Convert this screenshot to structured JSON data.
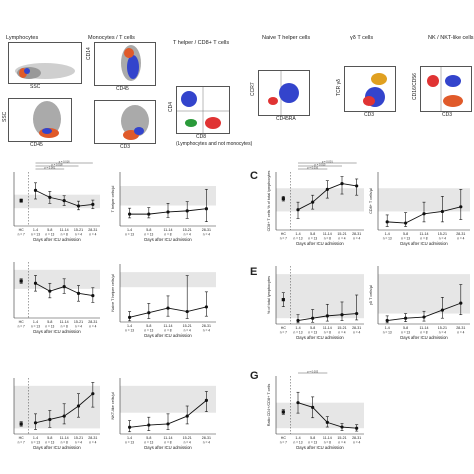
{
  "flow": {
    "headers": [
      {
        "id": "lymphocytes",
        "text": "Lymphocytes"
      },
      {
        "id": "monocytes",
        "text": "Monocytes / T cells"
      },
      {
        "id": "thelper",
        "text": "T helper / CD8+ T cells"
      },
      {
        "id": "naive",
        "text": "Naive T helper cells"
      },
      {
        "id": "gd",
        "text": "γδ T cells"
      },
      {
        "id": "nk",
        "text": "NK / NKT-like cells"
      }
    ],
    "axis_labels": {
      "ssc1": "SSC",
      "cd14": "CD14",
      "cd45": "CD45",
      "ssc2": "SSC",
      "cd45_b": "CD45",
      "cd3": "CD3",
      "cd4": "CD4",
      "cd8": "CD8",
      "gate_note": "(Lymphocytes and not monocytes)",
      "ccr7": "CCR7",
      "cd45ra": "CD45RA",
      "tcrgd": "TCR γδ",
      "cd3_b": "CD3",
      "cd16cd56": "CD16/CD56",
      "cd3_c": "CD3"
    }
  },
  "panels": {
    "C": "C",
    "E": "E",
    "G": "G"
  },
  "chart_data": [
    {
      "id": "A1",
      "type": "line",
      "ylabel": "",
      "xlabel": "Days after ICU admission",
      "categories": [
        "HC",
        "1-4",
        "5-8",
        "11-14",
        "15-21",
        "28-31"
      ],
      "n_labels": [
        "n = 7",
        "n = 13",
        "n = 13",
        "n = 8",
        "n = 4",
        "n = 4"
      ],
      "values": [
        0.47,
        0.66,
        0.53,
        0.47,
        0.37,
        0.4
      ],
      "err_low": [
        0.44,
        0.5,
        0.42,
        0.38,
        0.3,
        0.32
      ],
      "err_high": [
        0.5,
        0.8,
        0.64,
        0.56,
        0.46,
        0.48
      ],
      "band": [
        0.33,
        0.58
      ],
      "sig": [
        "p = 0.001",
        "p = 0.018",
        "p = 0.016"
      ]
    },
    {
      "id": "A2",
      "type": "line",
      "ylabel": "T helper cells/µl",
      "xlabel": "Days after ICU admission",
      "categories": [
        "1-4",
        "5-8",
        "11-14",
        "15-21",
        "28-31"
      ],
      "n_labels": [
        "n = 13",
        "n = 13",
        "n = 8",
        "n = 4",
        "n = 4"
      ],
      "values": [
        0.22,
        0.22,
        0.26,
        0.28,
        0.32
      ],
      "err_low": [
        0.15,
        0.15,
        0.16,
        0.14,
        0.08
      ],
      "err_high": [
        0.33,
        0.34,
        0.42,
        0.45,
        0.68
      ],
      "band": [
        0.38,
        0.74
      ],
      "sig": []
    },
    {
      "id": "C1",
      "type": "line",
      "ylabel": "CD8+ T cells % of total lymphocytes",
      "xlabel": "Days after ICU admission",
      "categories": [
        "HC",
        "1-4",
        "5-8",
        "11-14",
        "15-21",
        "28-31"
      ],
      "n_labels": [
        "n = 7",
        "n = 13",
        "n = 13",
        "n = 8",
        "n = 4",
        "n = 4"
      ],
      "values": [
        0.54,
        0.35,
        0.48,
        0.7,
        0.8,
        0.76
      ],
      "err_low": [
        0.5,
        0.2,
        0.36,
        0.55,
        0.62,
        0.6
      ],
      "err_high": [
        0.58,
        0.48,
        0.6,
        0.85,
        0.92,
        0.88
      ],
      "band": [
        0.32,
        0.72
      ],
      "sig": [
        "p = 0.016",
        "p = 0.015",
        "p = 0.001"
      ]
    },
    {
      "id": "C2",
      "type": "line",
      "ylabel": "CD8+ T cells/µl",
      "xlabel": "Days after ICU admission",
      "categories": [
        "1-4",
        "5-8",
        "11-14",
        "15-21",
        "28-31"
      ],
      "n_labels": [
        "n = 13",
        "n = 13",
        "n = 8",
        "n = 4",
        "n = 4"
      ],
      "values": [
        0.14,
        0.12,
        0.28,
        0.32,
        0.4
      ],
      "err_low": [
        0.06,
        0.06,
        0.14,
        0.14,
        0.18
      ],
      "err_high": [
        0.26,
        0.3,
        0.48,
        0.58,
        0.7
      ],
      "band": [
        0.32,
        0.72
      ],
      "sig": []
    },
    {
      "id": "B1",
      "type": "line",
      "ylabel": "",
      "xlabel": "Days after ICU admission",
      "categories": [
        "HC",
        "1-4",
        "5-8",
        "11-14",
        "15-21",
        "28-31"
      ],
      "n_labels": [
        "n = 7",
        "n = 13",
        "n = 13",
        "n = 8",
        "n = 4",
        "n = 4"
      ],
      "values": [
        0.66,
        0.62,
        0.48,
        0.56,
        0.44,
        0.4
      ],
      "err_low": [
        0.62,
        0.48,
        0.36,
        0.44,
        0.3,
        0.28
      ],
      "err_high": [
        0.7,
        0.76,
        0.62,
        0.7,
        0.58,
        0.54
      ],
      "band": [
        0.52,
        0.86
      ],
      "sig": []
    },
    {
      "id": "B2",
      "type": "line",
      "ylabel": "Naive T helper cells/µl",
      "xlabel": "Days after ICU admission",
      "categories": [
        "1-4",
        "5-8",
        "11-14",
        "15-21",
        "28-31"
      ],
      "n_labels": [
        "n = 13",
        "n = 13",
        "n = 8",
        "n = 4",
        "n = 4"
      ],
      "values": [
        0.08,
        0.16,
        0.24,
        0.18,
        0.26
      ],
      "err_low": [
        0.02,
        0.06,
        0.1,
        0.06,
        0.1
      ],
      "err_high": [
        0.18,
        0.32,
        0.45,
        0.8,
        0.52
      ],
      "band": [
        0.6,
        0.86
      ],
      "sig": []
    },
    {
      "id": "E1",
      "type": "line",
      "ylabel": "% of total lymphocytes",
      "xlabel": "Days after ICU admission",
      "categories": [
        "HC",
        "1-4",
        "5-8",
        "11-14",
        "15-21",
        "28-31"
      ],
      "n_labels": [
        "n = 7",
        "n = 13",
        "n = 13",
        "n = 8",
        "n = 4",
        "n = 4"
      ],
      "values": [
        0.42,
        0.06,
        0.1,
        0.14,
        0.16,
        0.18
      ],
      "err_low": [
        0.3,
        0.02,
        0.03,
        0.05,
        0.06,
        0.07
      ],
      "err_high": [
        0.54,
        0.16,
        0.25,
        0.34,
        0.38,
        0.5
      ],
      "band": [
        0.1,
        0.86
      ],
      "sig": []
    },
    {
      "id": "E2",
      "type": "line",
      "ylabel": "γδ T cells/µl",
      "xlabel": "Days after ICU admission",
      "categories": [
        "1-4",
        "5-8",
        "11-14",
        "15-21",
        "28-31"
      ],
      "n_labels": [
        "n = 13",
        "n = 13",
        "n = 8",
        "n = 4",
        "n = 4"
      ],
      "values": [
        0.06,
        0.1,
        0.12,
        0.24,
        0.36
      ],
      "err_low": [
        0.02,
        0.04,
        0.05,
        0.1,
        0.16
      ],
      "err_high": [
        0.14,
        0.18,
        0.22,
        0.46,
        0.68
      ],
      "band": [
        0.18,
        0.86
      ],
      "sig": []
    },
    {
      "id": "F1",
      "type": "line",
      "ylabel": "",
      "xlabel": "Days after ICU admission",
      "categories": [
        "HC",
        "1-4",
        "5-8",
        "11-14",
        "15-21",
        "28-31"
      ],
      "n_labels": [
        "n = 7",
        "n = 13",
        "n = 13",
        "n = 8",
        "n = 4",
        "n = 4"
      ],
      "values": [
        0.18,
        0.2,
        0.26,
        0.32,
        0.5,
        0.72
      ],
      "err_low": [
        0.14,
        0.08,
        0.12,
        0.18,
        0.3,
        0.48
      ],
      "err_high": [
        0.22,
        0.36,
        0.42,
        0.54,
        0.72,
        0.92
      ],
      "band": [
        0.1,
        0.86
      ],
      "sig": []
    },
    {
      "id": "F2",
      "type": "line",
      "ylabel": "NKT-like cells/µl",
      "xlabel": "Days after ICU admission",
      "categories": [
        "1-4",
        "5-8",
        "11-14",
        "15-21",
        "28-31"
      ],
      "n_labels": [
        "n = 13",
        "n = 13",
        "n = 8",
        "n = 4",
        "n = 4"
      ],
      "values": [
        0.12,
        0.16,
        0.18,
        0.32,
        0.6
      ],
      "err_low": [
        0.04,
        0.06,
        0.08,
        0.18,
        0.4
      ],
      "err_high": [
        0.24,
        0.3,
        0.36,
        0.5,
        0.76
      ],
      "band": [
        0.38,
        0.86
      ],
      "sig": []
    },
    {
      "id": "G1",
      "type": "line",
      "ylabel": "Ratio CD4+/CD8+ T cells",
      "xlabel": "Days after ICU admission",
      "categories": [
        "HC",
        "1-4",
        "5-8",
        "11-14",
        "15-21",
        "28-31"
      ],
      "n_labels": [
        "n = 7",
        "n = 13",
        "n = 13",
        "n = 8",
        "n = 4",
        "n = 4"
      ],
      "values": [
        0.38,
        0.54,
        0.46,
        0.2,
        0.12,
        0.1
      ],
      "err_low": [
        0.34,
        0.36,
        0.28,
        0.12,
        0.06,
        0.05
      ],
      "err_high": [
        0.42,
        0.72,
        0.64,
        0.3,
        0.18,
        0.16
      ],
      "band": [
        0.1,
        0.54
      ],
      "sig": [
        "p = 0.003"
      ]
    }
  ]
}
